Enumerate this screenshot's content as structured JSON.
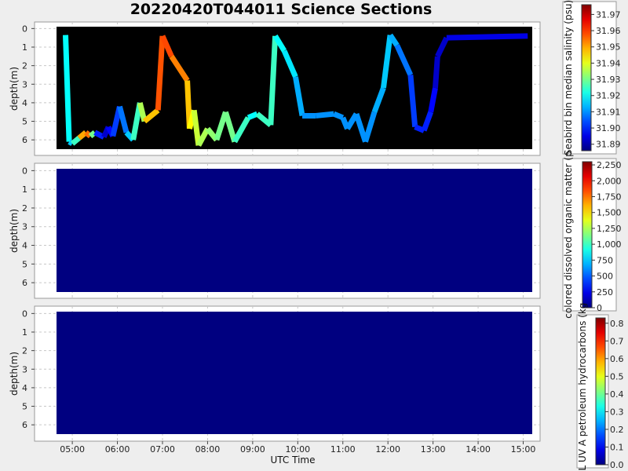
{
  "title": "20220420T044011 Science Sections",
  "chart_data": [
    {
      "type": "heatmap",
      "panel": "salinity",
      "background": "#000000",
      "ylabel": "depth(m)",
      "ylim": [
        6.5,
        -0.1
      ],
      "yticks": [
        0,
        1,
        2,
        3,
        4,
        5,
        6
      ],
      "xlim": [
        4.65,
        15.2
      ],
      "grid": true,
      "colorbar": {
        "label": "Seabird bin median salinity (psu)",
        "range": [
          31.886,
          31.976
        ],
        "ticks": [
          "31.97",
          "31.96",
          "31.95",
          "31.94",
          "31.93",
          "31.92",
          "31.91",
          "31.90",
          "31.89"
        ],
        "tick_values": [
          31.97,
          31.96,
          31.95,
          31.94,
          31.93,
          31.92,
          31.91,
          31.9,
          31.89
        ]
      },
      "track": [
        [
          4.85,
          0.35,
          31.92,
          "scan"
        ],
        [
          4.93,
          6.1,
          31.92,
          "scan"
        ],
        [
          5.0,
          6.2,
          31.91,
          "scan"
        ],
        [
          5.15,
          5.9,
          31.94,
          "scan"
        ],
        [
          5.3,
          5.6,
          31.96,
          "scan"
        ],
        [
          5.4,
          5.8,
          31.95,
          "scan"
        ],
        [
          5.5,
          5.6,
          31.91,
          "scan"
        ],
        [
          5.7,
          5.85,
          31.89,
          "scan"
        ],
        [
          5.8,
          5.3,
          31.895,
          "scan"
        ],
        [
          5.9,
          5.8,
          31.9,
          "scan"
        ],
        [
          6.05,
          4.2,
          31.905,
          "scan"
        ],
        [
          6.2,
          5.6,
          31.91,
          "scan"
        ],
        [
          6.35,
          6.0,
          31.92,
          "scan"
        ],
        [
          6.5,
          4.0,
          31.93,
          "scan"
        ],
        [
          6.6,
          5.0,
          31.94,
          "scan"
        ],
        [
          6.9,
          4.4,
          31.955,
          "scan"
        ],
        [
          7.0,
          0.4,
          31.96,
          "scan"
        ],
        [
          7.2,
          1.5,
          31.957,
          "scan"
        ],
        [
          7.55,
          2.8,
          31.95,
          "scan"
        ],
        [
          7.6,
          5.4,
          31.945,
          "scan"
        ],
        [
          7.7,
          4.4,
          31.94,
          "scan"
        ],
        [
          7.8,
          6.3,
          31.935,
          "scan"
        ],
        [
          8.0,
          5.4,
          31.935,
          "scan"
        ],
        [
          8.2,
          6.0,
          31.93,
          "scan"
        ],
        [
          8.4,
          4.5,
          31.93,
          "scan"
        ],
        [
          8.6,
          6.1,
          31.93,
          "scan"
        ],
        [
          8.9,
          4.8,
          31.92,
          "scan"
        ],
        [
          9.1,
          4.6,
          31.92,
          "scan"
        ],
        [
          9.4,
          5.2,
          31.93,
          "scan"
        ],
        [
          9.5,
          0.4,
          31.92,
          "scan"
        ],
        [
          9.7,
          1.2,
          31.92,
          "scan"
        ],
        [
          9.95,
          2.6,
          31.915,
          "scan"
        ],
        [
          10.1,
          4.7,
          31.91,
          "scan"
        ],
        [
          10.4,
          4.7,
          31.91,
          "scan"
        ],
        [
          10.8,
          4.6,
          31.91,
          "scan"
        ],
        [
          11.0,
          4.8,
          31.91,
          "scan"
        ],
        [
          11.1,
          5.4,
          31.91,
          "scan"
        ],
        [
          11.3,
          4.6,
          31.91,
          "scan"
        ],
        [
          11.5,
          6.1,
          31.91,
          "scan"
        ],
        [
          11.7,
          4.5,
          31.91,
          "scan"
        ],
        [
          11.9,
          3.2,
          31.915,
          "scan"
        ],
        [
          12.05,
          0.35,
          31.915,
          "scan"
        ],
        [
          12.2,
          0.9,
          31.91,
          "scan"
        ],
        [
          12.5,
          2.5,
          31.905,
          "scan"
        ],
        [
          12.6,
          5.3,
          31.9,
          "scan"
        ],
        [
          12.8,
          5.5,
          31.9,
          "scan"
        ],
        [
          12.95,
          4.5,
          31.9,
          "scan"
        ],
        [
          13.05,
          3.2,
          31.895,
          "scan"
        ],
        [
          13.1,
          1.5,
          31.89,
          "scan"
        ],
        [
          13.3,
          0.5,
          31.895,
          "scan"
        ],
        [
          15.1,
          0.4,
          31.895,
          "scan"
        ]
      ]
    },
    {
      "type": "heatmap",
      "panel": "cdom",
      "background": "#000080",
      "ylabel": "depth(m)",
      "ylim": [
        6.5,
        -0.1
      ],
      "yticks": [
        0,
        1,
        2,
        3,
        4,
        5,
        6
      ],
      "xlim": [
        4.65,
        15.2
      ],
      "grid": true,
      "colorbar": {
        "label": "colored dissolved organic matter (p",
        "range": [
          0,
          2300
        ],
        "ticks": [
          "2,250",
          "2,000",
          "1,750",
          "1,500",
          "1,250",
          "1,000",
          "750",
          "500",
          "250",
          "0"
        ],
        "tick_values": [
          2250,
          2000,
          1750,
          1500,
          1250,
          1000,
          750,
          500,
          250,
          0
        ]
      }
    },
    {
      "type": "heatmap",
      "panel": "petroleum_hydrocarbons",
      "background": "#000080",
      "ylabel": "depth(m)",
      "xlabel": "UTC Time",
      "ylim": [
        6.5,
        -0.1
      ],
      "yticks": [
        0,
        1,
        2,
        3,
        4,
        5,
        6
      ],
      "xlim": [
        4.65,
        15.2
      ],
      "xticks": [
        5,
        6,
        7,
        8,
        9,
        10,
        11,
        12,
        13,
        14,
        15
      ],
      "xticklabels": [
        "05:00",
        "06:00",
        "07:00",
        "08:00",
        "09:00",
        "10:00",
        "11:00",
        "12:00",
        "13:00",
        "14:00",
        "15:00"
      ],
      "grid": true,
      "colorbar": {
        "label": "WL UV A petroleum hydrocarbons (kg",
        "range": [
          0,
          0.83
        ],
        "ticks": [
          "0.8",
          "0.7",
          "0.6",
          "0.5",
          "0.4",
          "0.3",
          "0.2",
          "0.1",
          "0.0"
        ],
        "tick_values": [
          0.8,
          0.7,
          0.6,
          0.5,
          0.4,
          0.3,
          0.2,
          0.1,
          0.0
        ]
      }
    }
  ]
}
